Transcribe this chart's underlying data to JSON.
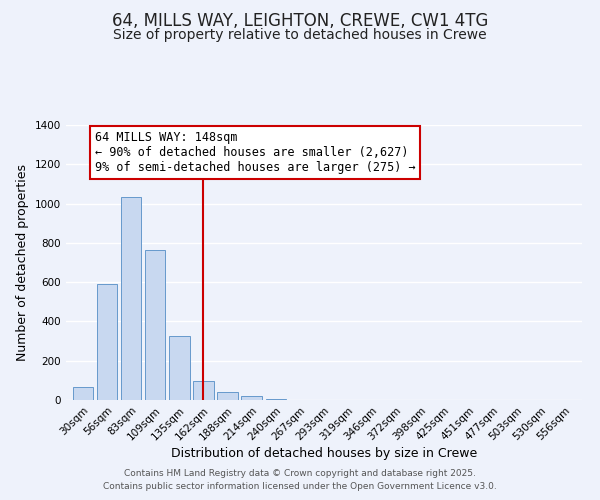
{
  "title": "64, MILLS WAY, LEIGHTON, CREWE, CW1 4TG",
  "subtitle": "Size of property relative to detached houses in Crewe",
  "xlabel": "Distribution of detached houses by size in Crewe",
  "ylabel": "Number of detached properties",
  "bar_color": "#c8d8f0",
  "bar_edge_color": "#6699cc",
  "categories": [
    "30sqm",
    "56sqm",
    "83sqm",
    "109sqm",
    "135sqm",
    "162sqm",
    "188sqm",
    "214sqm",
    "240sqm",
    "267sqm",
    "293sqm",
    "319sqm",
    "346sqm",
    "372sqm",
    "398sqm",
    "425sqm",
    "451sqm",
    "477sqm",
    "503sqm",
    "530sqm",
    "556sqm"
  ],
  "values": [
    65,
    590,
    1035,
    765,
    325,
    95,
    42,
    18,
    5,
    0,
    0,
    0,
    0,
    0,
    0,
    0,
    0,
    0,
    0,
    0,
    0
  ],
  "ylim": [
    0,
    1400
  ],
  "yticks": [
    0,
    200,
    400,
    600,
    800,
    1000,
    1200,
    1400
  ],
  "property_line_x": 5.0,
  "annotation_title": "64 MILLS WAY: 148sqm",
  "annotation_line1": "← 90% of detached houses are smaller (2,627)",
  "annotation_line2": "9% of semi-detached houses are larger (275) →",
  "annotation_box_color": "#ffffff",
  "annotation_box_edge": "#cc0000",
  "property_line_color": "#cc0000",
  "footer1": "Contains HM Land Registry data © Crown copyright and database right 2025.",
  "footer2": "Contains public sector information licensed under the Open Government Licence v3.0.",
  "background_color": "#eef2fb",
  "grid_color": "#ffffff",
  "title_fontsize": 12,
  "subtitle_fontsize": 10,
  "axis_label_fontsize": 9,
  "tick_fontsize": 7.5,
  "annotation_fontsize": 8.5,
  "footer_fontsize": 6.5
}
